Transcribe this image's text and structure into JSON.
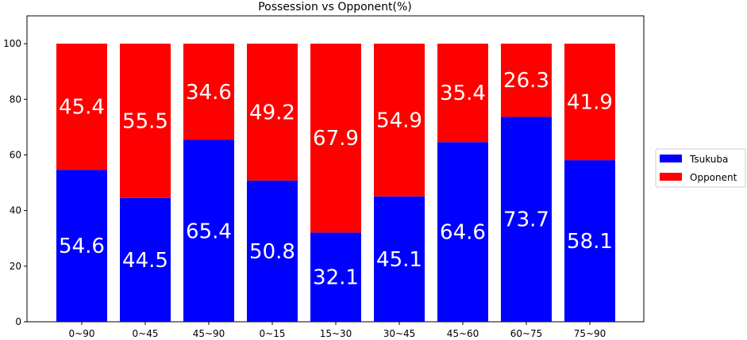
{
  "chart_data": {
    "type": "bar",
    "stacked": true,
    "title": "Possession vs Opponent(%)",
    "xlabel": "",
    "ylabel": "",
    "categories": [
      "0~90",
      "0~45",
      "45~90",
      "0~15",
      "15~30",
      "30~45",
      "45~60",
      "60~75",
      "75~90"
    ],
    "series": [
      {
        "name": "Tsukuba",
        "color": "#0000ff",
        "values": [
          54.6,
          44.5,
          65.4,
          50.8,
          32.1,
          45.1,
          64.6,
          73.7,
          58.1
        ]
      },
      {
        "name": "Opponent",
        "color": "#ff0000",
        "values": [
          45.4,
          55.5,
          34.6,
          49.2,
          67.9,
          54.9,
          35.4,
          26.3,
          41.9
        ]
      }
    ],
    "ylim": [
      0,
      110
    ],
    "yticks": [
      0,
      20,
      40,
      60,
      80,
      100
    ],
    "grid": false,
    "legend_position": "right"
  }
}
